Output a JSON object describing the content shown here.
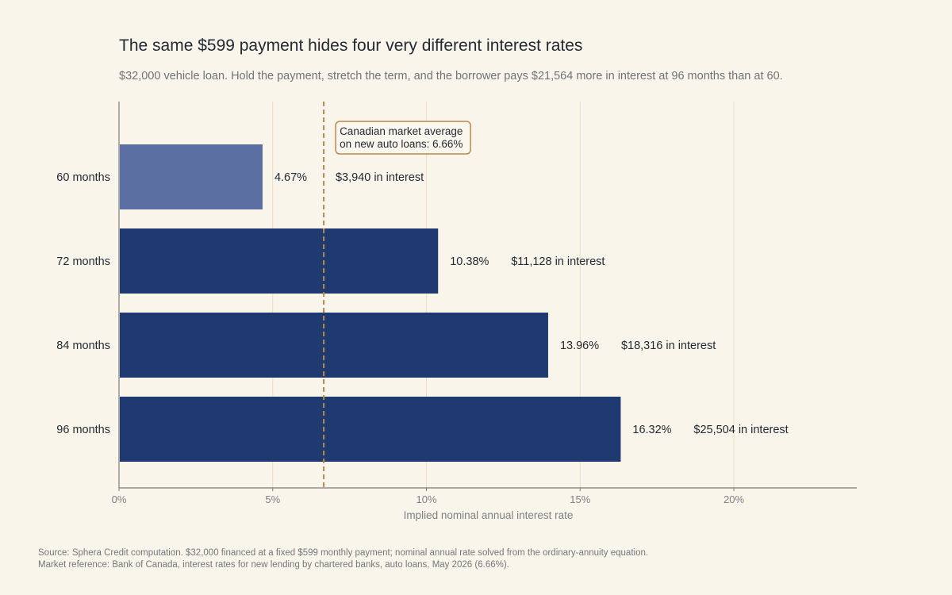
{
  "title": "The same $599 payment hides four very different interest rates",
  "subtitle": "$32,000 vehicle loan. Hold the payment, stretch the term, and the borrower pays $21,564 more in interest at 96 months than at 60.",
  "footnotes": [
    "Source: Sphera Credit computation. $32,000 financed at a fixed $599 monthly payment; nominal annual rate solved from the ordinary-annuity equation.",
    "Market reference: Bank of Canada, interest rates for new lending by chartered banks, auto loans, May 2026 (6.66%)."
  ],
  "colors": {
    "background": "#faf5ea",
    "highlight_bar": "#5b6fa3",
    "bar": "#1f3a70",
    "reference_line": "#b38a52",
    "grid": "#e9dfc4",
    "axis": "#7a7a7a"
  },
  "chart_data": {
    "type": "bar",
    "orientation": "horizontal",
    "categories": [
      "60 months",
      "72 months",
      "84 months",
      "96 months"
    ],
    "values": [
      4.67,
      10.38,
      13.96,
      16.32
    ],
    "value_labels": [
      "4.67%",
      "10.38%",
      "13.96%",
      "16.32%"
    ],
    "interest_labels": [
      "$3,940 in interest",
      "$11,128 in interest",
      "$18,316 in interest",
      "$25,504 in interest"
    ],
    "highlight_index": 0,
    "xlabel": "Implied nominal annual interest rate",
    "ylabel": "",
    "xlim": [
      0,
      24
    ],
    "xticks": [
      0,
      5,
      10,
      15,
      20
    ],
    "xtick_labels": [
      "0%",
      "5%",
      "10%",
      "15%",
      "20%"
    ],
    "grid": "vertical",
    "reference": {
      "value": 6.66,
      "label_lines": [
        "Canadian market average",
        "on new auto loans: 6.66%"
      ]
    }
  }
}
